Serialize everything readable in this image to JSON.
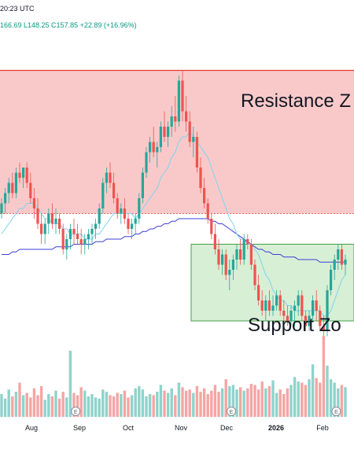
{
  "header": {
    "time_fragment": "20:23 UTC",
    "ohlc_fragment": "166.69  L148.25  C157.85  +22.89 (+16.96%)"
  },
  "annotations": {
    "resistance_label": "Resistance Z",
    "support_label": "Support Zo",
    "earnings_marker": "E"
  },
  "colors": {
    "up": "#26a69a",
    "down": "#ef5350",
    "resistance_fill": "#f9c9c9",
    "resistance_line": "#e53935",
    "support_fill": "#d7efd5",
    "support_line": "#43a047",
    "ma_short": "#7dd3f0",
    "ma_long": "#3f3fd4"
  },
  "chart_data": {
    "type": "candlestick",
    "x_labels": [
      "Aug",
      "Sep",
      "Oct",
      "Nov",
      "Dec",
      "2026",
      "Feb"
    ],
    "zones": {
      "resistance": {
        "low": 139,
        "high": 167
      },
      "support": {
        "low": 118,
        "high": 133
      }
    },
    "candles": [
      [
        139,
        142,
        138,
        141
      ],
      [
        141,
        144,
        139,
        143
      ],
      [
        143,
        146,
        141,
        145
      ],
      [
        145,
        147,
        142,
        143
      ],
      [
        143,
        148,
        142,
        147
      ],
      [
        147,
        149,
        145,
        146
      ],
      [
        146,
        148,
        144,
        148
      ],
      [
        148,
        149,
        144,
        145
      ],
      [
        145,
        147,
        141,
        142
      ],
      [
        142,
        144,
        138,
        140
      ],
      [
        140,
        142,
        136,
        137
      ],
      [
        137,
        139,
        133,
        135
      ],
      [
        135,
        138,
        133,
        137
      ],
      [
        137,
        140,
        135,
        139
      ],
      [
        139,
        141,
        136,
        137
      ],
      [
        137,
        140,
        135,
        138
      ],
      [
        138,
        139,
        135,
        136
      ],
      [
        136,
        137,
        131,
        132
      ],
      [
        132,
        135,
        130,
        134
      ],
      [
        134,
        137,
        132,
        136
      ],
      [
        136,
        138,
        133,
        135
      ],
      [
        135,
        137,
        133,
        134
      ],
      [
        134,
        136,
        131,
        133
      ],
      [
        133,
        135,
        131,
        134
      ],
      [
        134,
        136,
        132,
        135
      ],
      [
        135,
        137,
        133,
        136
      ],
      [
        136,
        138,
        134,
        137
      ],
      [
        137,
        141,
        136,
        140
      ],
      [
        140,
        146,
        139,
        145
      ],
      [
        145,
        148,
        143,
        147
      ],
      [
        147,
        149,
        144,
        145
      ],
      [
        145,
        147,
        141,
        142
      ],
      [
        142,
        143,
        138,
        139
      ],
      [
        139,
        141,
        137,
        140
      ],
      [
        140,
        142,
        137,
        138
      ],
      [
        138,
        139,
        135,
        136
      ],
      [
        136,
        138,
        134,
        137
      ],
      [
        137,
        139,
        135,
        138
      ],
      [
        138,
        143,
        137,
        142
      ],
      [
        142,
        148,
        141,
        147
      ],
      [
        147,
        152,
        146,
        151
      ],
      [
        151,
        154,
        149,
        153
      ],
      [
        153,
        156,
        150,
        151
      ],
      [
        151,
        153,
        148,
        152
      ],
      [
        152,
        157,
        151,
        156
      ],
      [
        156,
        159,
        153,
        154
      ],
      [
        154,
        157,
        152,
        156
      ],
      [
        156,
        160,
        154,
        158
      ],
      [
        158,
        162,
        155,
        157
      ],
      [
        157,
        166,
        156,
        165
      ],
      [
        165,
        167,
        157,
        159
      ],
      [
        159,
        162,
        155,
        157
      ],
      [
        157,
        159,
        152,
        153
      ],
      [
        153,
        156,
        150,
        154
      ],
      [
        154,
        155,
        147,
        148
      ],
      [
        148,
        150,
        143,
        144
      ],
      [
        144,
        146,
        140,
        141
      ],
      [
        141,
        142,
        137,
        138
      ],
      [
        138,
        139,
        134,
        135
      ],
      [
        135,
        137,
        131,
        132
      ],
      [
        132,
        134,
        128,
        129
      ],
      [
        129,
        132,
        127,
        131
      ],
      [
        131,
        132,
        126,
        127
      ],
      [
        127,
        130,
        124,
        128
      ],
      [
        128,
        131,
        126,
        130
      ],
      [
        130,
        133,
        128,
        132
      ],
      [
        132,
        134,
        129,
        130
      ],
      [
        130,
        135,
        129,
        134
      ],
      [
        134,
        135,
        132,
        133
      ],
      [
        133,
        134,
        128,
        129
      ],
      [
        129,
        130,
        124,
        125
      ],
      [
        125,
        127,
        121,
        122
      ],
      [
        122,
        124,
        119,
        120
      ],
      [
        120,
        123,
        118,
        122
      ],
      [
        122,
        124,
        119,
        120
      ],
      [
        120,
        123,
        119,
        121
      ],
      [
        121,
        124,
        120,
        123
      ],
      [
        123,
        124,
        119,
        120
      ],
      [
        120,
        122,
        117,
        119
      ],
      [
        119,
        121,
        117,
        118
      ],
      [
        118,
        121,
        117,
        120
      ],
      [
        120,
        122,
        117,
        121
      ],
      [
        121,
        124,
        119,
        123
      ],
      [
        123,
        124,
        118,
        119
      ],
      [
        119,
        120,
        116,
        117
      ],
      [
        117,
        120,
        116,
        119
      ],
      [
        119,
        123,
        118,
        122
      ],
      [
        122,
        124,
        118,
        120
      ],
      [
        120,
        121,
        116,
        117
      ],
      [
        117,
        119,
        115,
        116
      ],
      [
        116,
        125,
        115,
        124
      ],
      [
        124,
        129,
        123,
        128
      ],
      [
        128,
        131,
        126,
        130
      ],
      [
        130,
        133,
        128,
        132
      ],
      [
        132,
        133,
        128,
        129
      ],
      [
        129,
        131,
        127,
        130
      ]
    ],
    "ma_short": [
      135,
      136,
      137,
      138,
      139,
      140,
      140,
      141,
      141,
      141,
      140,
      139,
      138,
      138,
      137,
      137,
      137,
      136,
      136,
      135,
      135,
      135,
      135,
      134,
      134,
      134,
      135,
      135,
      136,
      137,
      138,
      139,
      139,
      139,
      139,
      139,
      139,
      138,
      139,
      140,
      141,
      142,
      143,
      144,
      146,
      147,
      148,
      150,
      151,
      153,
      154,
      154,
      155,
      154,
      153,
      152,
      151,
      150,
      148,
      146,
      144,
      142,
      140,
      138,
      137,
      135,
      134,
      134,
      133,
      133,
      132,
      131,
      129,
      127,
      126,
      124,
      123,
      122,
      122,
      121,
      121,
      120,
      120,
      120,
      120,
      120,
      120,
      120,
      120,
      119,
      119,
      120,
      122,
      124,
      126,
      127
    ],
    "ma_long": [
      131,
      131,
      131,
      131.5,
      131.5,
      132,
      132,
      132,
      132,
      132,
      132,
      132,
      132,
      132,
      132,
      132.5,
      132.5,
      132.5,
      132.5,
      132.5,
      133,
      133,
      133,
      133,
      133,
      133,
      133.5,
      133.5,
      133.5,
      134,
      134,
      134,
      134,
      134,
      134.5,
      134.5,
      134.5,
      135,
      135,
      135.5,
      135.5,
      136,
      136,
      136.5,
      136.5,
      137,
      137,
      137.5,
      137.5,
      138,
      138,
      138,
      138,
      138,
      138,
      138,
      138,
      138,
      137.5,
      137.5,
      137,
      137,
      136.5,
      136,
      135.5,
      135,
      134.5,
      134,
      133.5,
      133,
      132.5,
      132,
      132,
      131.5,
      131.5,
      131,
      131,
      131,
      130.5,
      130.5,
      130.5,
      130.5,
      130,
      130,
      130,
      130,
      130,
      130,
      129.5,
      129.5,
      129.5,
      129.5,
      129.5,
      129.5,
      129.5,
      129.5
    ],
    "volume": [
      20,
      16,
      24,
      18,
      22,
      30,
      19,
      21,
      17,
      25,
      19,
      27,
      15,
      20,
      18,
      23,
      16,
      22,
      17,
      58,
      21,
      19,
      26,
      23,
      18,
      20,
      17,
      16,
      24,
      22,
      19,
      18,
      21,
      20,
      23,
      17,
      19,
      25,
      27,
      24,
      18,
      20,
      19,
      22,
      28,
      23,
      21,
      25,
      19,
      30,
      26,
      23,
      24,
      21,
      27,
      22,
      25,
      20,
      23,
      28,
      22,
      25,
      33,
      27,
      28,
      24,
      26,
      23,
      25,
      29,
      28,
      24,
      31,
      25,
      27,
      32,
      21,
      24,
      20,
      25,
      28,
      35,
      31,
      30,
      28,
      33,
      46,
      34,
      30,
      71,
      45,
      33,
      30,
      25,
      28,
      26
    ],
    "earnings_indices": [
      17,
      60,
      89
    ]
  }
}
